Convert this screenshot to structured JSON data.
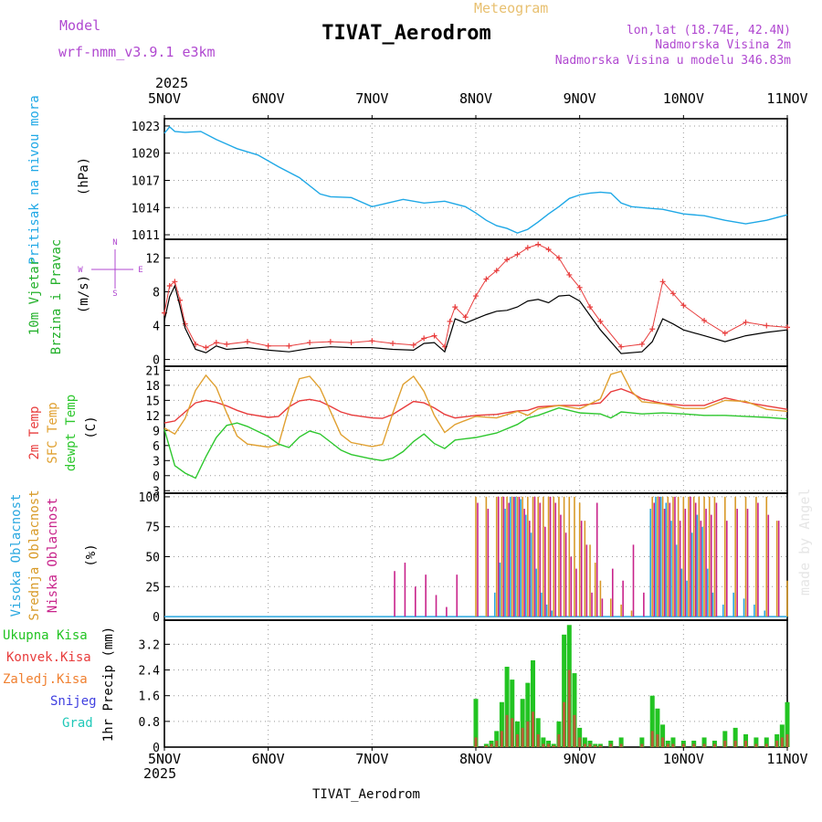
{
  "header": {
    "model_label": "Model",
    "model_name": "wrf-nmm_v3.9.1  e3km",
    "product": "Meteogram",
    "title": "TIVAT_Aerodrom",
    "lonlat": "lon,lat (18.74E, 42.4N)",
    "elevation": "Nadmorska Visina 2m",
    "model_elevation": "Nadmorska Visina u modelu 346.83m",
    "footer_title": "TIVAT_Aerodrom",
    "credit": "made by Angel",
    "year": "2025"
  },
  "colors": {
    "pressure": "#1fa8e6",
    "label_magenta": "#b048d0",
    "label_green": "#22b02a",
    "temp_2m": "#e83c3c",
    "temp_sfc": "#e0a030",
    "dewpt": "#2ec72e",
    "title_orange": "#e8c070",
    "cloud_high": "#2aa8e0",
    "cloud_mid": "#d89a28",
    "cloud_low": "#c8228a",
    "precip_total": "#22c422",
    "precip_conv": "#e83c3c",
    "precip_frz": "#f08030",
    "precip_snow": "#4040e0",
    "precip_grad": "#20c8b8"
  },
  "chart_data": [
    {
      "type": "line",
      "panel": "pressure",
      "ylabel": "Pritisak na nivou mora",
      "unit": "(hPa)",
      "ylim": [
        1010.5,
        1023.8
      ],
      "yticks": [
        1011,
        1014,
        1017,
        1020,
        1023
      ],
      "x_days": [
        0,
        0.05,
        0.1,
        0.2,
        0.35,
        0.5,
        0.7,
        0.9,
        1.1,
        1.3,
        1.5,
        1.6,
        1.8,
        2.0,
        2.15,
        2.3,
        2.5,
        2.7,
        2.9,
        3.0,
        3.1,
        3.2,
        3.3,
        3.4,
        3.5,
        3.6,
        3.7,
        3.8,
        3.9,
        4.0,
        4.1,
        4.2,
        4.3,
        4.4,
        4.5,
        4.6,
        4.7,
        4.8,
        5.0,
        5.2,
        5.4,
        5.6,
        5.8,
        6.0
      ],
      "series": [
        {
          "name": "Pritisak",
          "values": [
            1022.2,
            1022.9,
            1022.4,
            1022.3,
            1022.4,
            1021.5,
            1020.5,
            1019.8,
            1018.5,
            1017.3,
            1015.5,
            1015.2,
            1015.1,
            1014.1,
            1014.5,
            1014.9,
            1014.5,
            1014.7,
            1014.1,
            1013.4,
            1012.6,
            1012.0,
            1011.7,
            1011.2,
            1011.6,
            1012.4,
            1013.3,
            1014.1,
            1015.0,
            1015.4,
            1015.6,
            1015.7,
            1015.6,
            1014.5,
            1014.1,
            1014.0,
            1013.9,
            1013.8,
            1013.3,
            1013.1,
            1012.6,
            1012.2,
            1012.6,
            1013.2
          ]
        }
      ]
    },
    {
      "type": "line",
      "panel": "wind",
      "ylabel": "10m Vjetar",
      "ylabel2": "Brzina i Pravac",
      "unit": "(m/s)",
      "compass": {
        "n": "N",
        "s": "S",
        "w": "W",
        "e": "E"
      },
      "ylim": [
        -0.8,
        14.2
      ],
      "yticks": [
        0,
        4,
        8,
        12
      ],
      "x_days": [
        0,
        0.05,
        0.1,
        0.15,
        0.2,
        0.3,
        0.4,
        0.5,
        0.6,
        0.8,
        1.0,
        1.2,
        1.4,
        1.6,
        1.8,
        2.0,
        2.2,
        2.4,
        2.5,
        2.6,
        2.7,
        2.75,
        2.8,
        2.9,
        3.0,
        3.1,
        3.2,
        3.3,
        3.4,
        3.5,
        3.6,
        3.7,
        3.8,
        3.9,
        4.0,
        4.1,
        4.2,
        4.4,
        4.6,
        4.7,
        4.8,
        4.9,
        5.0,
        5.2,
        5.4,
        5.6,
        5.8,
        6.0
      ],
      "series": [
        {
          "name": "Brzina",
          "values": [
            4.6,
            7.4,
            8.7,
            6.3,
            3.7,
            1.2,
            0.8,
            1.6,
            1.2,
            1.4,
            1.1,
            0.9,
            1.3,
            1.5,
            1.4,
            1.4,
            1.2,
            1.1,
            1.9,
            2.0,
            0.9,
            2.8,
            4.8,
            4.3,
            4.8,
            5.3,
            5.7,
            5.8,
            6.2,
            6.9,
            7.1,
            6.7,
            7.5,
            7.6,
            6.9,
            5.2,
            3.5,
            0.7,
            0.9,
            2.1,
            4.8,
            4.2,
            3.5,
            2.8,
            2.1,
            2.8,
            3.2,
            3.5
          ]
        },
        {
          "name": "Udari",
          "values": [
            5.5,
            8.7,
            9.2,
            7.0,
            4.2,
            1.8,
            1.4,
            2.0,
            1.8,
            2.1,
            1.6,
            1.6,
            2.0,
            2.1,
            2.0,
            2.2,
            1.9,
            1.7,
            2.5,
            2.8,
            1.5,
            4.5,
            6.2,
            5.0,
            7.5,
            9.5,
            10.5,
            11.8,
            12.4,
            13.2,
            13.6,
            13.0,
            12.0,
            10.0,
            8.5,
            6.2,
            4.5,
            1.5,
            1.8,
            3.6,
            9.2,
            7.8,
            6.4,
            4.6,
            3.1,
            4.4,
            4.0,
            3.8
          ]
        }
      ]
    },
    {
      "type": "line",
      "panel": "temperature",
      "ylabel": "2m Temp",
      "ylabel2": "SFC Temp",
      "ylabel3": "dewpt Temp",
      "unit": "(C)",
      "ylim": [
        -3.5,
        21.8
      ],
      "yticks": [
        -3,
        0,
        3,
        6,
        9,
        12,
        15,
        18,
        21
      ],
      "x_days": [
        0,
        0.1,
        0.2,
        0.3,
        0.4,
        0.5,
        0.6,
        0.7,
        0.8,
        1.0,
        1.1,
        1.2,
        1.3,
        1.4,
        1.5,
        1.6,
        1.7,
        1.8,
        2.0,
        2.1,
        2.2,
        2.3,
        2.4,
        2.5,
        2.6,
        2.7,
        2.8,
        3.0,
        3.2,
        3.4,
        3.5,
        3.6,
        3.8,
        4.0,
        4.2,
        4.3,
        4.4,
        4.5,
        4.6,
        4.8,
        5.0,
        5.2,
        5.4,
        5.6,
        5.8,
        6.0
      ],
      "series": [
        {
          "name": "2m Temp",
          "values": [
            10.5,
            10.9,
            12.7,
            14.5,
            15.0,
            14.6,
            13.9,
            13.0,
            12.3,
            11.6,
            11.8,
            13.7,
            14.9,
            15.2,
            14.8,
            13.8,
            12.7,
            12.1,
            11.5,
            11.4,
            12.2,
            13.5,
            14.8,
            14.5,
            13.5,
            12.2,
            11.5,
            12.0,
            12.2,
            12.9,
            13.0,
            13.7,
            14.0,
            14.0,
            14.5,
            16.7,
            17.3,
            16.5,
            15.3,
            14.4,
            14.0,
            14.0,
            15.5,
            14.6,
            13.9,
            13.2
          ]
        },
        {
          "name": "SFC Temp",
          "values": [
            9.5,
            8.3,
            11.4,
            17.0,
            20.0,
            17.6,
            12.5,
            7.9,
            6.3,
            5.7,
            6.2,
            13.5,
            19.3,
            19.8,
            17.4,
            12.8,
            8.2,
            6.6,
            5.8,
            6.2,
            12.5,
            18.2,
            19.8,
            16.8,
            12.0,
            8.6,
            10.2,
            11.8,
            11.5,
            12.8,
            12.0,
            13.3,
            14.0,
            13.3,
            15.3,
            20.2,
            20.8,
            16.8,
            14.7,
            14.3,
            13.4,
            13.4,
            15.0,
            14.8,
            13.2,
            12.8
          ]
        },
        {
          "name": "dewpt Temp",
          "values": [
            9.2,
            2.0,
            0.5,
            -0.5,
            3.8,
            7.6,
            10.0,
            10.5,
            9.8,
            7.8,
            6.3,
            5.6,
            7.7,
            8.9,
            8.3,
            6.7,
            5.1,
            4.2,
            3.3,
            3.0,
            3.5,
            4.8,
            6.8,
            8.3,
            6.4,
            5.4,
            7.1,
            7.6,
            8.5,
            10.2,
            11.5,
            12.0,
            13.5,
            12.5,
            12.3,
            11.5,
            12.7,
            12.5,
            12.3,
            12.5,
            12.3,
            12.0,
            12.0,
            11.8,
            11.6,
            11.3
          ]
        }
      ]
    },
    {
      "type": "bar",
      "panel": "cloud",
      "ylabel": "Visoka Oblacnost",
      "ylabel2": "Srednja Oblacnost",
      "ylabel3": "Niska Oblacnost",
      "unit": "(%)",
      "ylim": [
        -3,
        103
      ],
      "yticks": [
        0,
        25,
        50,
        75,
        100
      ],
      "x_days": [
        2.2,
        2.3,
        2.4,
        2.5,
        2.6,
        2.7,
        2.8,
        3.0,
        3.1,
        3.2,
        3.25,
        3.3,
        3.35,
        3.4,
        3.45,
        3.5,
        3.55,
        3.6,
        3.65,
        3.7,
        3.75,
        3.8,
        3.85,
        3.9,
        3.95,
        4.0,
        4.05,
        4.1,
        4.15,
        4.2,
        4.3,
        4.4,
        4.5,
        4.6,
        4.7,
        4.75,
        4.8,
        4.85,
        4.9,
        4.95,
        5.0,
        5.05,
        5.1,
        5.15,
        5.2,
        5.25,
        5.3,
        5.4,
        5.5,
        5.6,
        5.7,
        5.8,
        5.9,
        6.0
      ],
      "series": [
        {
          "name": "Visoka Oblacnost",
          "values": [
            0,
            0,
            0,
            0,
            0,
            0,
            0,
            0,
            0,
            20,
            45,
            90,
            100,
            100,
            98,
            85,
            70,
            40,
            20,
            10,
            5,
            0,
            0,
            0,
            0,
            0,
            0,
            0,
            0,
            0,
            0,
            0,
            0,
            0,
            90,
            100,
            100,
            95,
            80,
            60,
            40,
            30,
            70,
            85,
            75,
            40,
            20,
            10,
            20,
            15,
            10,
            5,
            0,
            0
          ]
        },
        {
          "name": "Srednja Oblacnost",
          "values": [
            0,
            0,
            0,
            0,
            0,
            0,
            0,
            100,
            100,
            100,
            100,
            100,
            100,
            100,
            100,
            100,
            100,
            100,
            100,
            100,
            100,
            100,
            100,
            100,
            100,
            95,
            80,
            60,
            45,
            30,
            15,
            10,
            5,
            0,
            100,
            100,
            100,
            100,
            100,
            100,
            100,
            100,
            100,
            100,
            100,
            100,
            100,
            100,
            100,
            100,
            100,
            100,
            80,
            30
          ]
        },
        {
          "name": "Niska Oblacnost",
          "values": [
            38,
            45,
            25,
            35,
            18,
            8,
            35,
            95,
            90,
            100,
            100,
            95,
            100,
            100,
            90,
            80,
            100,
            95,
            75,
            100,
            95,
            85,
            70,
            50,
            40,
            80,
            60,
            20,
            95,
            15,
            40,
            30,
            60,
            20,
            95,
            100,
            90,
            95,
            100,
            80,
            90,
            100,
            95,
            80,
            90,
            85,
            95,
            80,
            90,
            90,
            95,
            85,
            80,
            0
          ]
        }
      ]
    },
    {
      "type": "bar",
      "panel": "precipitation",
      "ylabel": "1hr Precip (mm)",
      "legend": [
        "Ukupna Kisa",
        "Konvek.Kisa",
        "Zaledj.Kisa",
        "Snijeg",
        "Grad"
      ],
      "ylim": [
        0,
        3.95
      ],
      "yticks": [
        0,
        0.8,
        1.6,
        2.4,
        3.2
      ],
      "x_days": [
        3.0,
        3.1,
        3.15,
        3.2,
        3.25,
        3.3,
        3.35,
        3.4,
        3.45,
        3.5,
        3.55,
        3.6,
        3.65,
        3.7,
        3.75,
        3.8,
        3.85,
        3.9,
        3.95,
        4.0,
        4.05,
        4.1,
        4.15,
        4.2,
        4.3,
        4.4,
        4.6,
        4.7,
        4.75,
        4.8,
        4.85,
        4.9,
        5.0,
        5.1,
        5.2,
        5.3,
        5.4,
        5.5,
        5.6,
        5.7,
        5.8,
        5.9,
        5.95,
        6.0
      ],
      "series": [
        {
          "name": "Ukupna Kisa",
          "values": [
            1.5,
            0.1,
            0.2,
            0.5,
            1.4,
            2.5,
            2.1,
            0.8,
            1.5,
            2.0,
            2.7,
            0.9,
            0.3,
            0.2,
            0.1,
            0.8,
            3.5,
            3.8,
            2.3,
            0.6,
            0.3,
            0.2,
            0.1,
            0.1,
            0.2,
            0.3,
            0.3,
            1.6,
            1.2,
            0.7,
            0.2,
            0.3,
            0.2,
            0.2,
            0.3,
            0.2,
            0.5,
            0.6,
            0.4,
            0.3,
            0.3,
            0.4,
            0.7,
            1.4
          ]
        },
        {
          "name": "Konvek.Kisa",
          "values": [
            0.3,
            0.05,
            0.1,
            0.2,
            0.5,
            1.0,
            0.9,
            0.4,
            0.6,
            0.8,
            1.1,
            0.4,
            0.1,
            0.1,
            0.05,
            0.4,
            1.4,
            2.4,
            1.0,
            0.3,
            0.1,
            0.1,
            0.05,
            0.05,
            0.1,
            0.1,
            0.1,
            0.5,
            0.4,
            0.3,
            0.1,
            0.1,
            0.1,
            0.1,
            0.1,
            0.1,
            0.2,
            0.2,
            0.2,
            0.1,
            0.1,
            0.2,
            0.3,
            0.4
          ]
        }
      ]
    }
  ],
  "time_axis": {
    "labels": [
      "5NOV",
      "6NOV",
      "7NOV",
      "8NOV",
      "9NOV",
      "10NOV",
      "11NOV"
    ]
  }
}
